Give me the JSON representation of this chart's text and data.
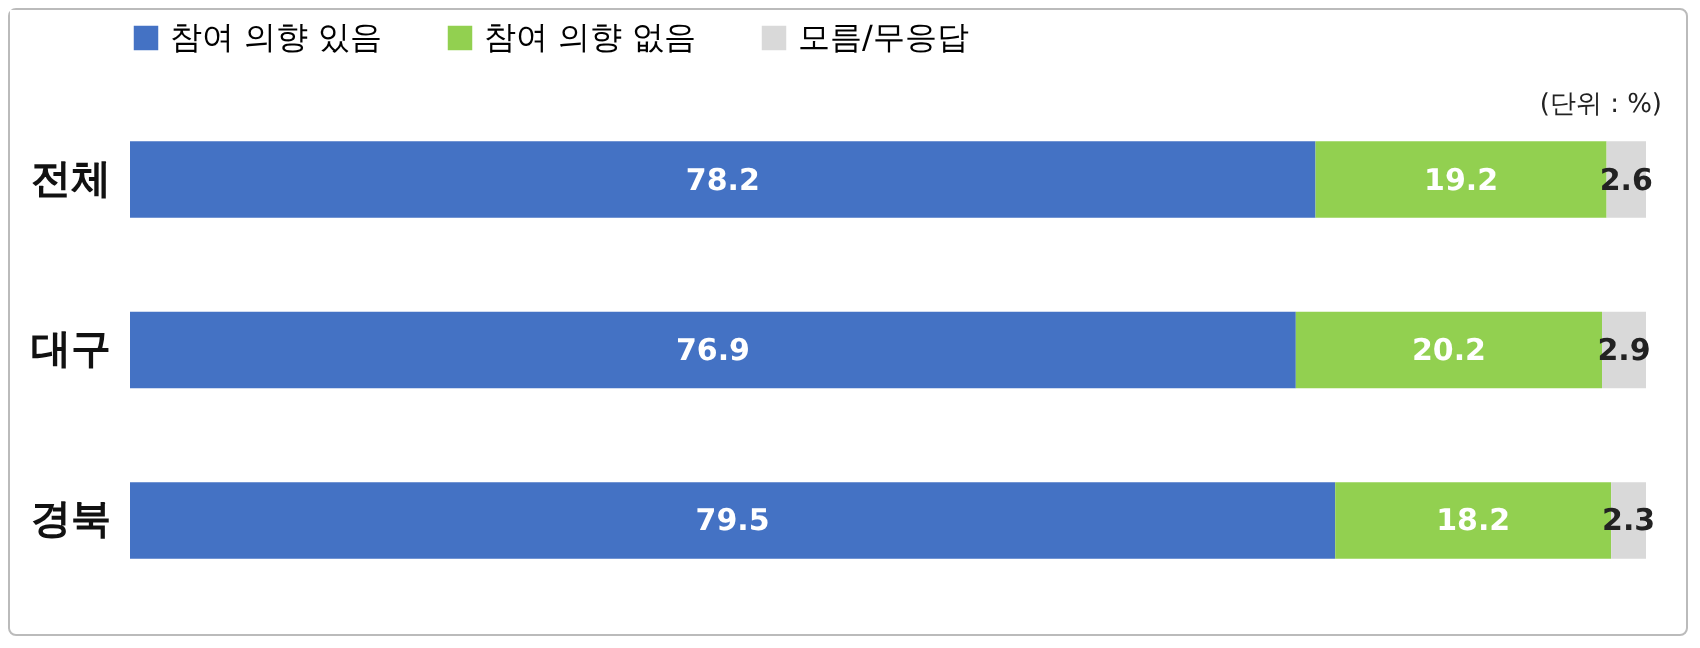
{
  "chart_data": {
    "type": "bar",
    "orientation": "horizontal",
    "stacked": true,
    "data_labels": true,
    "grid": false,
    "legend": "top",
    "categories": [
      "전체",
      "대구",
      "경북"
    ],
    "series": [
      {
        "name": "참여 의향 있음",
        "color": "#4472c4",
        "values": [
          78.2,
          76.9,
          79.5
        ]
      },
      {
        "name": "참여 의향 없음",
        "color": "#92d050",
        "values": [
          19.2,
          20.2,
          18.2
        ]
      },
      {
        "name": "모름/무응답",
        "color": "#d9d9d9",
        "values": [
          2.6,
          2.9,
          2.3
        ]
      }
    ],
    "annotations": [
      "(단위 : %)"
    ]
  }
}
